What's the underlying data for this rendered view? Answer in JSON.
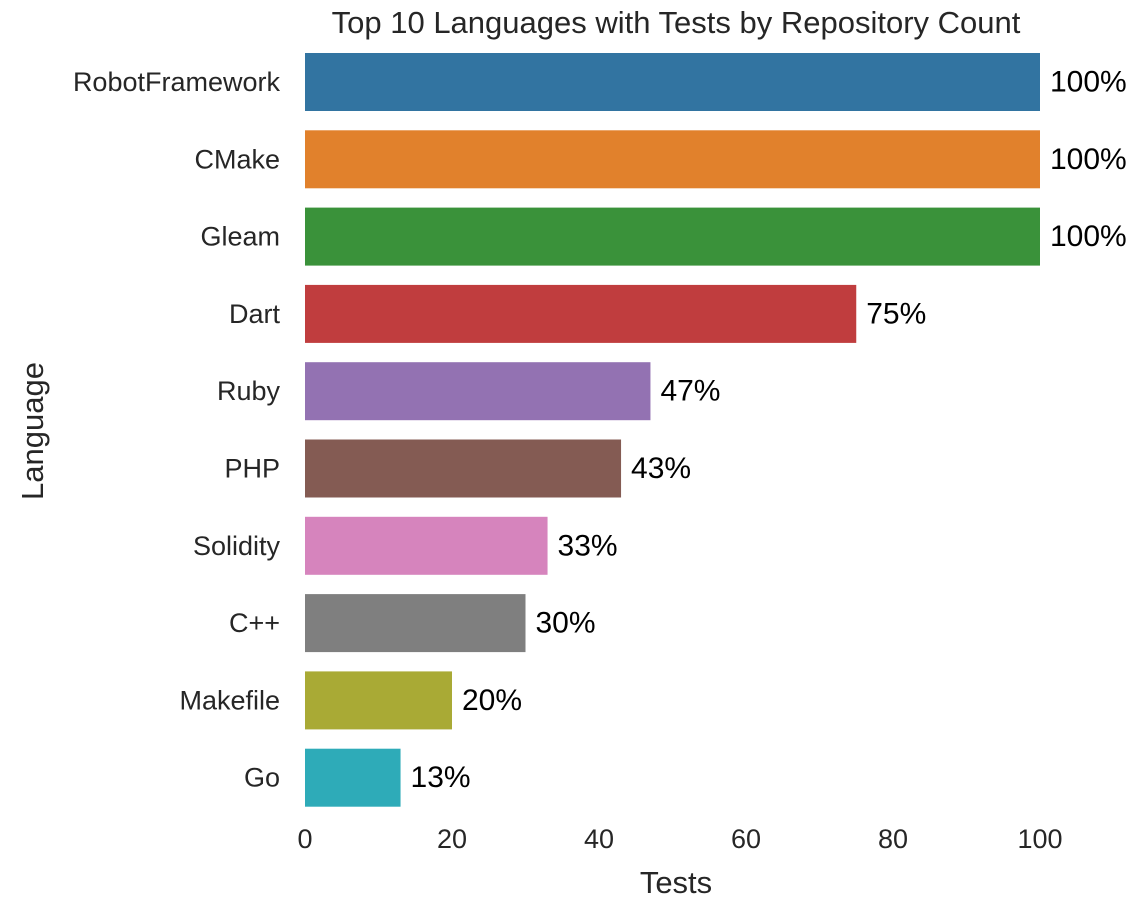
{
  "chart_data": {
    "type": "bar",
    "orientation": "horizontal",
    "title": "Top 10 Languages with Tests by Repository Count",
    "xlabel": "Tests",
    "ylabel": "Language",
    "xlim": [
      0,
      100
    ],
    "xticks": [
      0,
      20,
      40,
      60,
      80,
      100
    ],
    "grid": false,
    "categories": [
      "RobotFramework",
      "CMake",
      "Gleam",
      "Dart",
      "Ruby",
      "PHP",
      "Solidity",
      "C++",
      "Makefile",
      "Go"
    ],
    "values": [
      100,
      100,
      100,
      75,
      47,
      43,
      33,
      30,
      20,
      13
    ],
    "data_labels": [
      "100%",
      "100%",
      "100%",
      "75%",
      "47%",
      "43%",
      "33%",
      "30%",
      "20%",
      "13%"
    ],
    "colors": [
      "#3274a1",
      "#e1812c",
      "#3a923a",
      "#c03d3e",
      "#9372b2",
      "#845b53",
      "#d684bd",
      "#7f7f7f",
      "#a9aa35",
      "#2eabb8"
    ]
  }
}
